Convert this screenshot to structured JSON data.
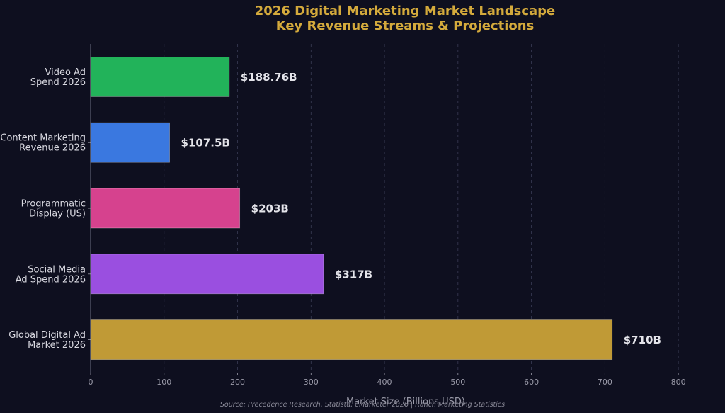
{
  "chart_data": {
    "type": "bar",
    "orientation": "horizontal",
    "title_lines": [
      "2026 Digital Marketing Market Landscape",
      "Key Revenue Streams & Projections"
    ],
    "categories": [
      [
        "Video Ad",
        "Spend 2026"
      ],
      [
        "Content Marketing",
        "Revenue 2026"
      ],
      [
        "Programmatic",
        "Display (US)"
      ],
      [
        "Social Media",
        "Ad Spend 2026"
      ],
      [
        "Global Digital Ad",
        "Market 2026"
      ]
    ],
    "values": [
      188.76,
      107.5,
      203,
      317,
      710
    ],
    "value_labels": [
      "$188.76B",
      "$107.5B",
      "$203B",
      "$317B",
      "$710B"
    ],
    "colors": [
      "#22b35a",
      "#3a78e0",
      "#d6428e",
      "#9a4fe0",
      "#c09a36"
    ],
    "xlabel": "Market Size (Billions USD)",
    "xlim": [
      0,
      850
    ],
    "xticks": [
      0,
      100,
      200,
      300,
      400,
      500,
      600,
      700,
      800
    ],
    "grid": true,
    "source": "Source: Precedence Research, Statista, eMarketer 2026 | Ranch Marketing Statistics"
  }
}
